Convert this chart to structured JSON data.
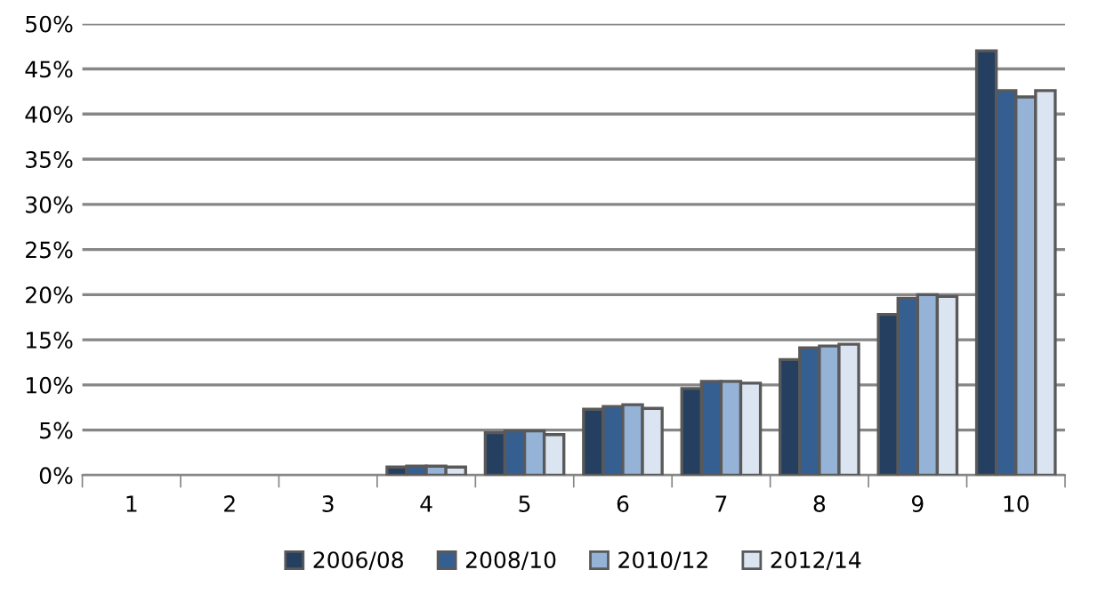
{
  "chart_data": {
    "type": "bar",
    "categories": [
      "1",
      "2",
      "3",
      "4",
      "5",
      "6",
      "7",
      "8",
      "9",
      "10"
    ],
    "series": [
      {
        "name": "2006/08",
        "color": "#243f60",
        "values": [
          0,
          0,
          0,
          0.9,
          4.7,
          7.3,
          9.6,
          12.8,
          17.8,
          47.0
        ]
      },
      {
        "name": "2008/10",
        "color": "#365f91",
        "values": [
          0,
          0,
          0,
          1.0,
          4.9,
          7.6,
          10.4,
          14.1,
          19.6,
          42.6
        ]
      },
      {
        "name": "2010/12",
        "color": "#95b3d7",
        "values": [
          0,
          0,
          0,
          1.0,
          4.9,
          7.8,
          10.4,
          14.3,
          20.0,
          41.9
        ]
      },
      {
        "name": "2012/14",
        "color": "#dbe5f1",
        "values": [
          0,
          0,
          0,
          0.9,
          4.5,
          7.4,
          10.2,
          14.5,
          19.8,
          42.6
        ]
      }
    ],
    "ylim": [
      0,
      50
    ],
    "yticks": [
      {
        "value": 0,
        "label": "0%"
      },
      {
        "value": 5,
        "label": "5%"
      },
      {
        "value": 10,
        "label": "10%"
      },
      {
        "value": 15,
        "label": "15%"
      },
      {
        "value": 20,
        "label": "20%"
      },
      {
        "value": 25,
        "label": "25%"
      },
      {
        "value": 30,
        "label": "30%"
      },
      {
        "value": 35,
        "label": "35%"
      },
      {
        "value": 40,
        "label": "40%"
      },
      {
        "value": 45,
        "label": "45%"
      },
      {
        "value": 50,
        "label": "50%"
      }
    ],
    "grid": "y",
    "legend": "bottom"
  }
}
